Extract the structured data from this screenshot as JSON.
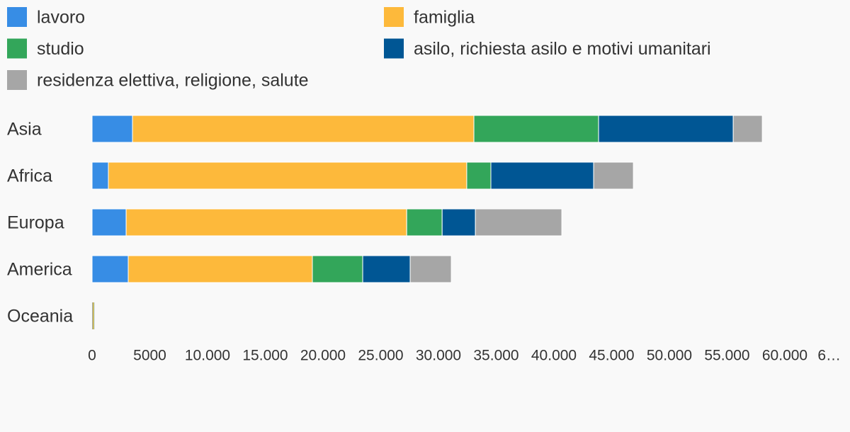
{
  "chart_data": {
    "type": "stacked-barh",
    "categories": [
      "Asia",
      "Africa",
      "Europa",
      "America",
      "Oceania"
    ],
    "series": [
      {
        "name": "lavoro",
        "color": "#378de5",
        "values": [
          3500,
          1410,
          2950,
          3130,
          40
        ]
      },
      {
        "name": "famiglia",
        "color": "#fdb93b",
        "values": [
          29570,
          31040,
          24300,
          15950,
          100
        ]
      },
      {
        "name": "studio",
        "color": "#33a65a",
        "values": [
          10800,
          2090,
          3070,
          4360,
          30
        ]
      },
      {
        "name": "asilo, richiesta asilo e motivi umanitari",
        "color": "#005694",
        "values": [
          11660,
          8900,
          2880,
          4110,
          5
        ]
      },
      {
        "name": "residenza elettiva, religione, salute",
        "color": "#a6a6a6",
        "values": [
          2515,
          3440,
          7480,
          3560,
          20
        ]
      }
    ],
    "xlim": [
      0,
      65000
    ],
    "xticks": [
      0,
      5000,
      {
        "value": 10000,
        "label": "10.000"
      },
      {
        "value": 15000,
        "label": "15.000"
      },
      {
        "value": 20000,
        "label": "20.000"
      },
      {
        "value": 25000,
        "label": "25.000"
      },
      {
        "value": 30000,
        "label": "30.000"
      },
      {
        "value": 35000,
        "label": "35.000"
      },
      {
        "value": 40000,
        "label": "40.000"
      },
      {
        "value": 45000,
        "label": "45.000"
      },
      {
        "value": 50000,
        "label": "50.000"
      },
      {
        "value": 55000,
        "label": "55.000"
      },
      {
        "value": 60000,
        "label": "60.000"
      },
      {
        "value": 65000,
        "label": "6…"
      }
    ],
    "legend": "top"
  }
}
